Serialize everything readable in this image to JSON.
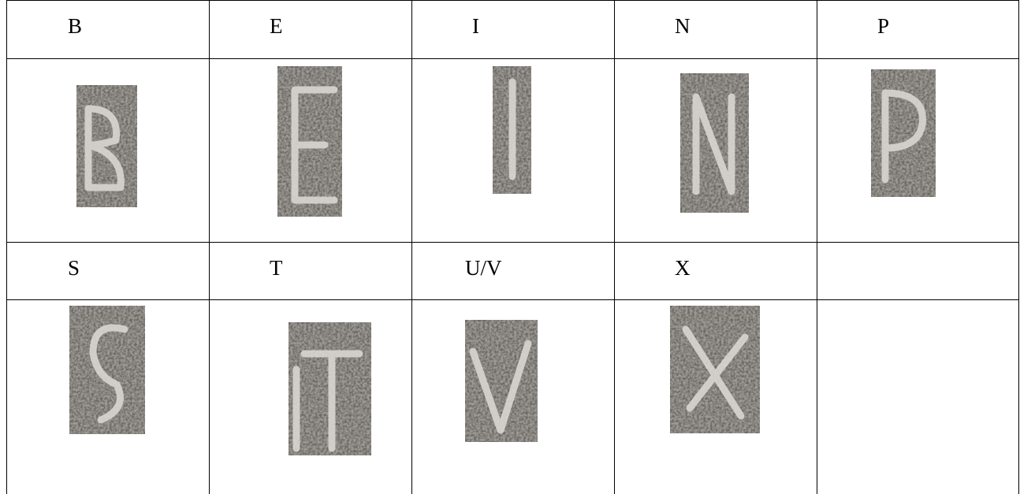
{
  "table": {
    "rows": [
      [
        "B",
        "E",
        "I",
        "N",
        "P"
      ],
      [
        "S",
        "T",
        "U/V",
        "X"
      ]
    ]
  }
}
